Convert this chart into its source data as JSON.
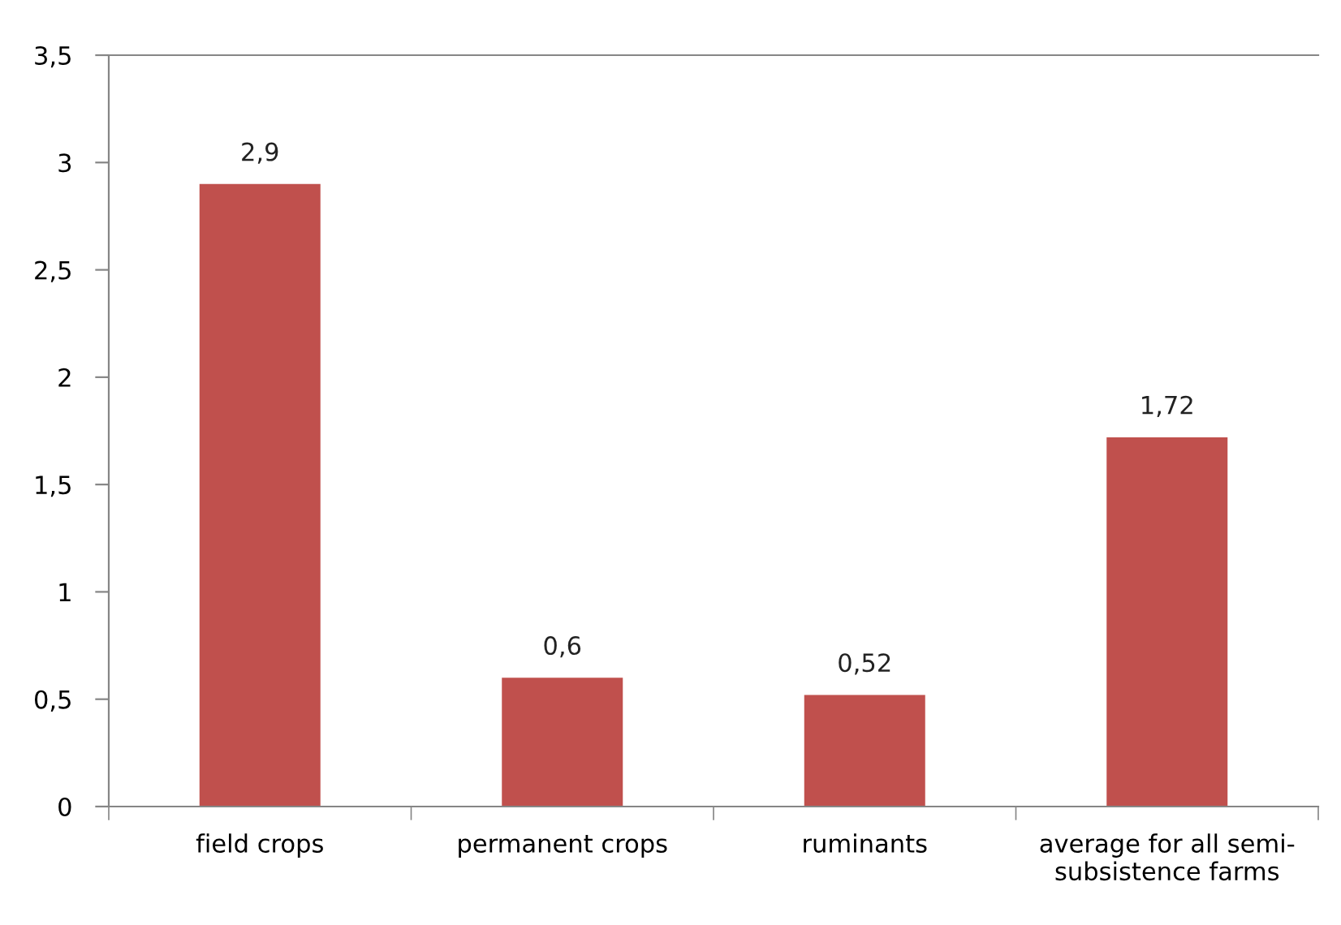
{
  "chart_data": {
    "type": "bar",
    "categories": [
      "field crops",
      "permanent crops",
      "ruminants",
      "average for all semi-\nsubsistence farms"
    ],
    "values": [
      2.9,
      0.6,
      0.52,
      1.72
    ],
    "value_labels": [
      "2,9",
      "0,6",
      "0,52",
      "1,72"
    ],
    "color": "#c0504d",
    "ylim": [
      0,
      3.5
    ],
    "yticks": [
      {
        "value": 0,
        "label": "0"
      },
      {
        "value": 0.5,
        "label": "0,5"
      },
      {
        "value": 1,
        "label": "1"
      },
      {
        "value": 1.5,
        "label": "1,5"
      },
      {
        "value": 2,
        "label": "2"
      },
      {
        "value": 2.5,
        "label": "2,5"
      },
      {
        "value": 3,
        "label": "3"
      },
      {
        "value": 3.5,
        "label": "3,5"
      }
    ],
    "grid": false
  }
}
